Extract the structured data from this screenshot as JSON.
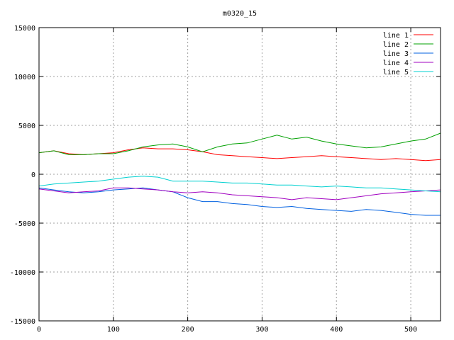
{
  "chart_data": {
    "type": "line",
    "title": "m0320_15",
    "xlabel": "",
    "ylabel": "",
    "xlim": [
      0,
      540
    ],
    "ylim": [
      -15000,
      15000
    ],
    "x_ticks": [
      0,
      100,
      200,
      300,
      400,
      500
    ],
    "y_ticks": [
      -15000,
      -10000,
      -5000,
      0,
      5000,
      10000,
      15000
    ],
    "grid": true,
    "legend_position": "top-right",
    "x": [
      0,
      20,
      40,
      60,
      80,
      100,
      120,
      140,
      160,
      180,
      200,
      220,
      240,
      260,
      280,
      300,
      320,
      340,
      360,
      380,
      400,
      420,
      440,
      460,
      480,
      500,
      520,
      540
    ],
    "series": [
      {
        "name": "line 1",
        "color": "#ff0000",
        "values": [
          2200,
          2400,
          2100,
          2000,
          2100,
          2200,
          2500,
          2700,
          2600,
          2600,
          2500,
          2300,
          2000,
          1900,
          1800,
          1700,
          1600,
          1700,
          1800,
          1900,
          1800,
          1700,
          1600,
          1500,
          1600,
          1500,
          1400,
          1500
        ]
      },
      {
        "name": "line 2",
        "color": "#00a000",
        "values": [
          2200,
          2400,
          2000,
          2000,
          2100,
          2100,
          2400,
          2800,
          3000,
          3100,
          2800,
          2300,
          2800,
          3100,
          3200,
          3600,
          4000,
          3600,
          3800,
          3400,
          3100,
          2900,
          2700,
          2800,
          3100,
          3400,
          3600,
          4200
        ]
      },
      {
        "name": "line 3",
        "color": "#0060e0",
        "values": [
          -1400,
          -1600,
          -1800,
          -1900,
          -1800,
          -1600,
          -1500,
          -1400,
          -1600,
          -1800,
          -2400,
          -2800,
          -2800,
          -3000,
          -3100,
          -3300,
          -3400,
          -3300,
          -3500,
          -3600,
          -3700,
          -3800,
          -3600,
          -3700,
          -3900,
          -4100,
          -4200,
          -4200
        ]
      },
      {
        "name": "line 4",
        "color": "#a000c0",
        "values": [
          -1500,
          -1700,
          -1900,
          -1800,
          -1700,
          -1400,
          -1400,
          -1500,
          -1600,
          -1800,
          -1900,
          -1800,
          -1900,
          -2100,
          -2200,
          -2300,
          -2400,
          -2600,
          -2400,
          -2500,
          -2600,
          -2400,
          -2200,
          -2000,
          -1900,
          -1800,
          -1700,
          -1600
        ]
      },
      {
        "name": "line 5",
        "color": "#00d0d0",
        "values": [
          -1200,
          -1000,
          -900,
          -800,
          -700,
          -500,
          -300,
          -200,
          -300,
          -700,
          -700,
          -700,
          -800,
          -900,
          -900,
          -1000,
          -1100,
          -1100,
          -1200,
          -1300,
          -1200,
          -1300,
          -1400,
          -1400,
          -1500,
          -1600,
          -1700,
          -1800
        ]
      }
    ]
  }
}
